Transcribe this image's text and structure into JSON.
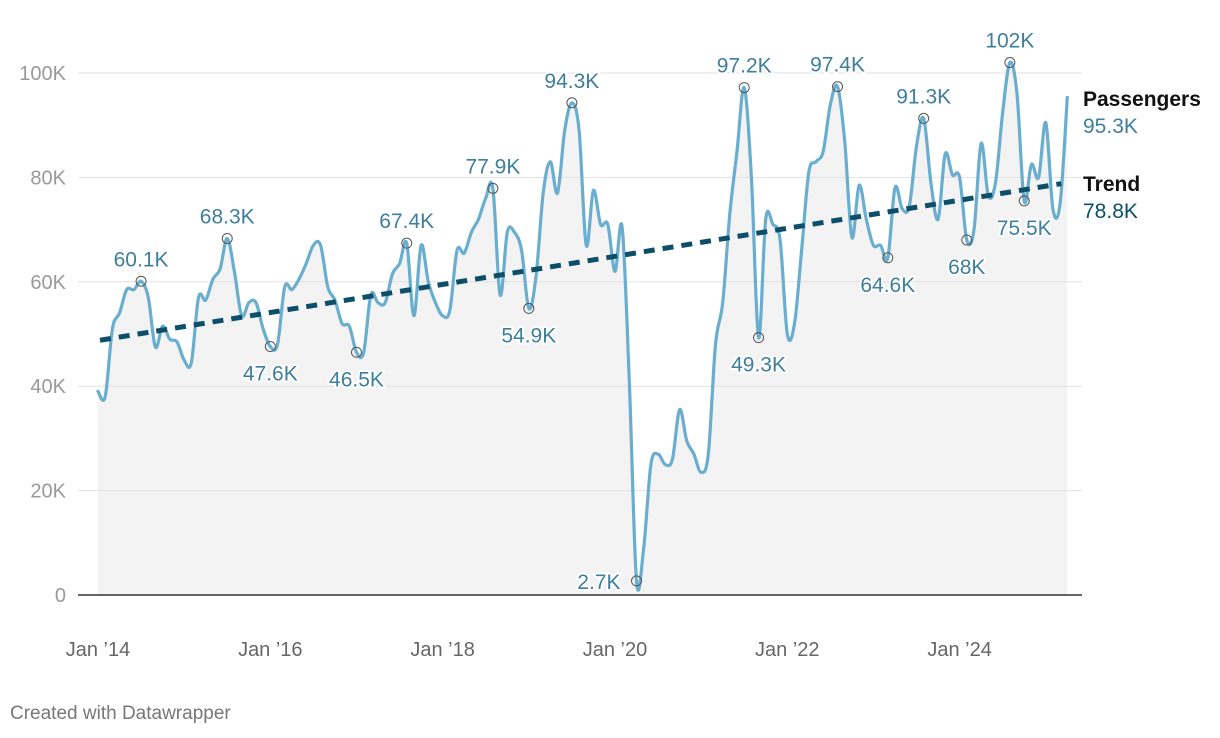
{
  "footer": "Created with Datawrapper",
  "colors": {
    "passengers": "#6aaecf",
    "trend": "#0d4f6b",
    "label": "#3d7f9c",
    "axis_text": "#999999",
    "area": "#f3f3f3",
    "grid": "#e2e2e2"
  },
  "chart_data": {
    "type": "line",
    "ylim": [
      0,
      105000
    ],
    "y_ticks": [
      0,
      20000,
      40000,
      60000,
      80000,
      100000
    ],
    "y_tick_labels": [
      "0",
      "20K",
      "40K",
      "60K",
      "80K",
      "100K"
    ],
    "x_ticks": [
      "2014-01",
      "2016-01",
      "2018-01",
      "2020-01",
      "2022-01",
      "2024-01"
    ],
    "x_tick_labels": [
      "Jan ’14",
      "Jan ’16",
      "Jan ’18",
      "Jan ’20",
      "Jan ’22",
      "Jan ’24"
    ],
    "grid": true,
    "area_fill": true,
    "series": [
      {
        "name": "Passengers",
        "end_label": "Passengers",
        "end_value_label": "95.3K",
        "style": "solid",
        "points": [
          [
            "2014-01",
            39000
          ],
          [
            "2014-02",
            38000
          ],
          [
            "2014-03",
            51000
          ],
          [
            "2014-04",
            54000
          ],
          [
            "2014-05",
            58500
          ],
          [
            "2014-06",
            58500
          ],
          [
            "2014-07",
            60100
          ],
          [
            "2014-08",
            57000
          ],
          [
            "2014-09",
            47500
          ],
          [
            "2014-10",
            51500
          ],
          [
            "2014-11",
            49000
          ],
          [
            "2014-12",
            48500
          ],
          [
            "2015-01",
            45000
          ],
          [
            "2015-02",
            44500
          ],
          [
            "2015-03",
            57000
          ],
          [
            "2015-04",
            56500
          ],
          [
            "2015-05",
            60500
          ],
          [
            "2015-06",
            62500
          ],
          [
            "2015-07",
            68300
          ],
          [
            "2015-08",
            62000
          ],
          [
            "2015-09",
            53500
          ],
          [
            "2015-10",
            56000
          ],
          [
            "2015-11",
            56000
          ],
          [
            "2015-12",
            51000
          ],
          [
            "2016-01",
            47600
          ],
          [
            "2016-02",
            48000
          ],
          [
            "2016-03",
            59000
          ],
          [
            "2016-04",
            58500
          ],
          [
            "2016-05",
            60500
          ],
          [
            "2016-06",
            63500
          ],
          [
            "2016-07",
            67000
          ],
          [
            "2016-08",
            67000
          ],
          [
            "2016-09",
            59000
          ],
          [
            "2016-10",
            56500
          ],
          [
            "2016-11",
            52000
          ],
          [
            "2016-12",
            51500
          ],
          [
            "2017-01",
            46500
          ],
          [
            "2017-02",
            46500
          ],
          [
            "2017-03",
            57500
          ],
          [
            "2017-04",
            56000
          ],
          [
            "2017-05",
            56000
          ],
          [
            "2017-06",
            61500
          ],
          [
            "2017-07",
            63500
          ],
          [
            "2017-08",
            67400
          ],
          [
            "2017-09",
            53500
          ],
          [
            "2017-10",
            67000
          ],
          [
            "2017-11",
            60000
          ],
          [
            "2017-12",
            56000
          ],
          [
            "2018-01",
            53500
          ],
          [
            "2018-02",
            54500
          ],
          [
            "2018-03",
            66000
          ],
          [
            "2018-04",
            65500
          ],
          [
            "2018-05",
            69500
          ],
          [
            "2018-06",
            72000
          ],
          [
            "2018-07",
            76000
          ],
          [
            "2018-08",
            77900
          ],
          [
            "2018-09",
            57500
          ],
          [
            "2018-10",
            69500
          ],
          [
            "2018-11",
            69500
          ],
          [
            "2018-12",
            66000
          ],
          [
            "2019-01",
            54900
          ],
          [
            "2019-02",
            61000
          ],
          [
            "2019-03",
            77000
          ],
          [
            "2019-04",
            83000
          ],
          [
            "2019-05",
            77000
          ],
          [
            "2019-06",
            89000
          ],
          [
            "2019-07",
            94300
          ],
          [
            "2019-08",
            89000
          ],
          [
            "2019-09",
            67000
          ],
          [
            "2019-10",
            77500
          ],
          [
            "2019-11",
            71000
          ],
          [
            "2019-12",
            71000
          ],
          [
            "2020-01",
            62000
          ],
          [
            "2020-02",
            70500
          ],
          [
            "2020-03",
            41000
          ],
          [
            "2020-04",
            2700
          ],
          [
            "2020-05",
            9000
          ],
          [
            "2020-06",
            25000
          ],
          [
            "2020-07",
            27000
          ],
          [
            "2020-08",
            25000
          ],
          [
            "2020-09",
            26000
          ],
          [
            "2020-10",
            35500
          ],
          [
            "2020-11",
            29500
          ],
          [
            "2020-12",
            27000
          ],
          [
            "2021-01",
            23500
          ],
          [
            "2021-02",
            27000
          ],
          [
            "2021-03",
            48000
          ],
          [
            "2021-04",
            56000
          ],
          [
            "2021-05",
            73000
          ],
          [
            "2021-06",
            85000
          ],
          [
            "2021-07",
            97200
          ],
          [
            "2021-08",
            80000
          ],
          [
            "2021-09",
            49300
          ],
          [
            "2021-10",
            72000
          ],
          [
            "2021-11",
            71000
          ],
          [
            "2021-12",
            68000
          ],
          [
            "2022-01",
            50000
          ],
          [
            "2022-02",
            52000
          ],
          [
            "2022-03",
            66000
          ],
          [
            "2022-04",
            81000
          ],
          [
            "2022-05",
            83000
          ],
          [
            "2022-06",
            85000
          ],
          [
            "2022-07",
            94000
          ],
          [
            "2022-08",
            97400
          ],
          [
            "2022-09",
            87000
          ],
          [
            "2022-10",
            68500
          ],
          [
            "2022-11",
            78500
          ],
          [
            "2022-12",
            72000
          ],
          [
            "2023-01",
            67000
          ],
          [
            "2023-02",
            67000
          ],
          [
            "2023-03",
            64600
          ],
          [
            "2023-04",
            78000
          ],
          [
            "2023-05",
            74000
          ],
          [
            "2023-06",
            74500
          ],
          [
            "2023-07",
            86000
          ],
          [
            "2023-08",
            91300
          ],
          [
            "2023-09",
            79000
          ],
          [
            "2023-10",
            72000
          ],
          [
            "2023-11",
            84500
          ],
          [
            "2023-12",
            80500
          ],
          [
            "2024-01",
            80000
          ],
          [
            "2024-02",
            68000
          ],
          [
            "2024-03",
            70000
          ],
          [
            "2024-04",
            86500
          ],
          [
            "2024-05",
            76500
          ],
          [
            "2024-06",
            79000
          ],
          [
            "2024-07",
            92500
          ],
          [
            "2024-08",
            102000
          ],
          [
            "2024-09",
            96000
          ],
          [
            "2024-10",
            75500
          ],
          [
            "2024-11",
            82500
          ],
          [
            "2024-12",
            80000
          ],
          [
            "2025-01",
            90500
          ],
          [
            "2025-02",
            74000
          ],
          [
            "2025-03",
            75000
          ],
          [
            "2025-04",
            95300
          ]
        ]
      },
      {
        "name": "Trend",
        "end_label": "Trend",
        "end_value_label": "78.8K",
        "style": "dashed",
        "points": [
          [
            "2014-01",
            48800
          ],
          [
            "2025-04",
            78800
          ]
        ]
      }
    ],
    "annotations": [
      {
        "date": "2014-07",
        "value": 60100,
        "label": "60.1K",
        "position": "above"
      },
      {
        "date": "2015-07",
        "value": 68300,
        "label": "68.3K",
        "position": "above"
      },
      {
        "date": "2016-01",
        "value": 47600,
        "label": "47.6K",
        "position": "below"
      },
      {
        "date": "2017-01",
        "value": 46500,
        "label": "46.5K",
        "position": "below"
      },
      {
        "date": "2017-08",
        "value": 67400,
        "label": "67.4K",
        "position": "above"
      },
      {
        "date": "2018-08",
        "value": 77900,
        "label": "77.9K",
        "position": "above"
      },
      {
        "date": "2019-01",
        "value": 54900,
        "label": "54.9K",
        "position": "below"
      },
      {
        "date": "2019-07",
        "value": 94300,
        "label": "94.3K",
        "position": "above"
      },
      {
        "date": "2020-04",
        "value": 2700,
        "label": "2.7K",
        "position": "left"
      },
      {
        "date": "2021-07",
        "value": 97200,
        "label": "97.2K",
        "position": "above"
      },
      {
        "date": "2021-09",
        "value": 49300,
        "label": "49.3K",
        "position": "below"
      },
      {
        "date": "2022-08",
        "value": 97400,
        "label": "97.4K",
        "position": "above"
      },
      {
        "date": "2023-03",
        "value": 64600,
        "label": "64.6K",
        "position": "below"
      },
      {
        "date": "2023-08",
        "value": 91300,
        "label": "91.3K",
        "position": "above"
      },
      {
        "date": "2024-02",
        "value": 68000,
        "label": "68K",
        "position": "below"
      },
      {
        "date": "2024-08",
        "value": 102000,
        "label": "102K",
        "position": "above"
      },
      {
        "date": "2024-10",
        "value": 75500,
        "label": "75.5K",
        "position": "below"
      }
    ]
  }
}
